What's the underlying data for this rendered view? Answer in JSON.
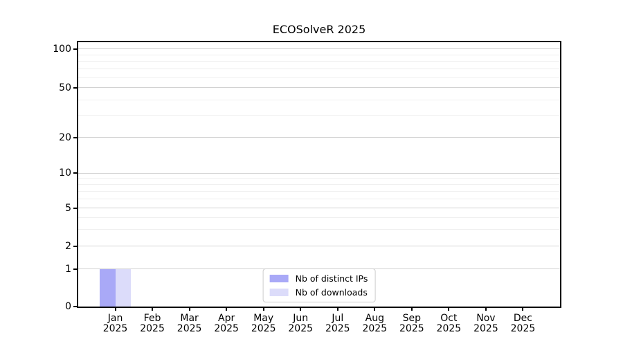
{
  "chart_data": {
    "type": "bar",
    "title": "ECOSolveR 2025",
    "categories": [
      "Jan 2025",
      "Feb 2025",
      "Mar 2025",
      "Apr 2025",
      "May 2025",
      "Jun 2025",
      "Jul 2025",
      "Aug 2025",
      "Sep 2025",
      "Oct 2025",
      "Nov 2025",
      "Dec 2025"
    ],
    "series": [
      {
        "name": "Nb of distinct IPs",
        "color": "#a9a9f7",
        "values": [
          1,
          0,
          0,
          0,
          0,
          0,
          0,
          0,
          0,
          0,
          0,
          0
        ]
      },
      {
        "name": "Nb of downloads",
        "color": "#dcdcfa",
        "values": [
          1,
          0,
          0,
          0,
          0,
          0,
          0,
          0,
          0,
          0,
          0,
          0
        ]
      }
    ],
    "xlabel": "",
    "ylabel": "",
    "y_scale": "symlog",
    "y_ticks": [
      0,
      1,
      2,
      5,
      10,
      20,
      50,
      100
    ],
    "y_minor_ticks": [
      3,
      4,
      6,
      7,
      8,
      9,
      30,
      40,
      60,
      70,
      80,
      90
    ],
    "ylim": [
      0,
      113
    ],
    "grid": "horizontal-major-and-minor",
    "legend_position": "lower center",
    "frame_color": "#000000",
    "grid_major_color": "#d2d2d2",
    "grid_minor_color": "#efefef"
  }
}
